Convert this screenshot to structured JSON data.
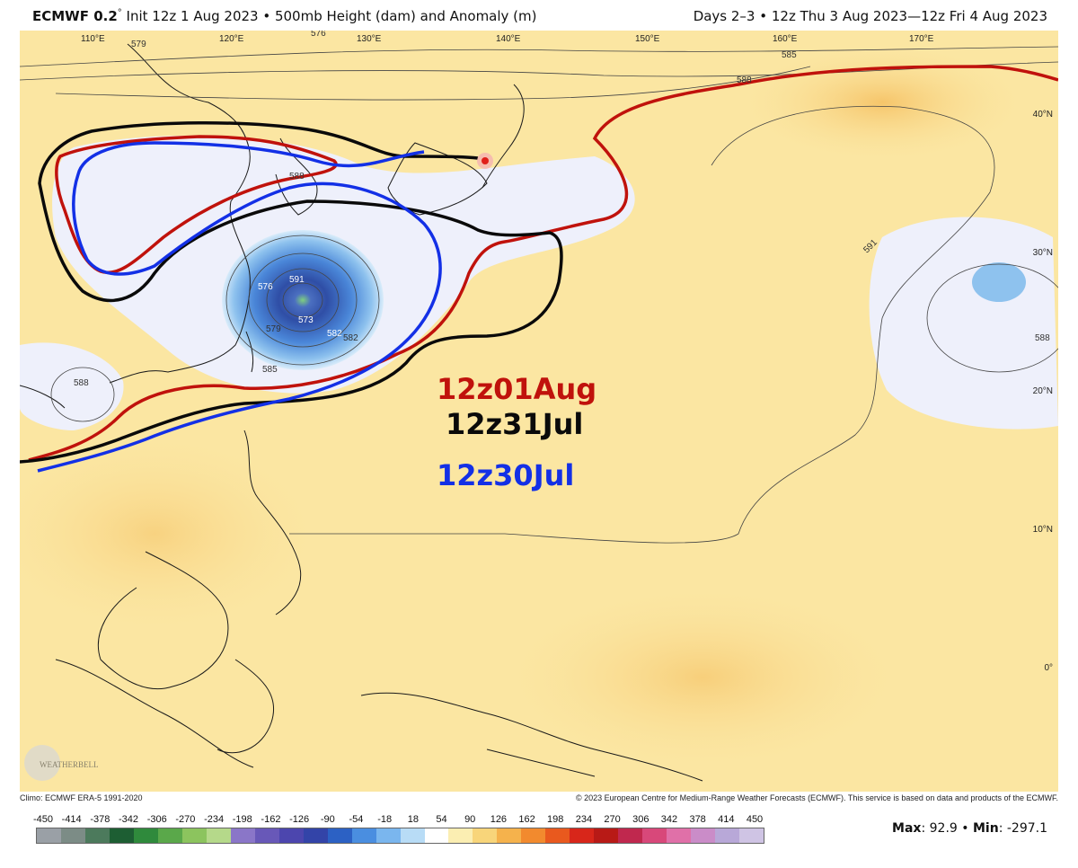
{
  "header": {
    "model": "ECMWF 0.2",
    "degree_mark": "°",
    "title_rest": " Init 12z 1 Aug 2023 • 500mb Height (dam) and Anomaly (m)",
    "valid": "Days 2–3 • 12z Thu 3 Aug 2023—12z Fri 4 Aug 2023"
  },
  "map": {
    "lon_labels": [
      "110°E",
      "120°E",
      "130°E",
      "140°E",
      "150°E",
      "160°E",
      "170°E"
    ],
    "lat_labels": [
      "40°N",
      "30°N",
      "20°N",
      "10°N",
      "0°"
    ],
    "contour_labels": [
      "576",
      "579",
      "585",
      "588",
      "591",
      "582",
      "573",
      "588",
      "576",
      "579",
      "582",
      "585",
      "588",
      "591",
      "588",
      "585",
      "582",
      "573",
      "585"
    ],
    "legend": {
      "aug01": "12z01Aug",
      "jul31": "12z31Jul",
      "jul30": "12z30Jul"
    },
    "colors": {
      "aug01": "#c0120c",
      "jul31": "#0a0a0a",
      "jul30": "#1330e6",
      "background": "#fbe8a6",
      "warm": "#f8cf78",
      "cool": "#eef0fb",
      "low_core": "#2f4ea6"
    },
    "watermark": "WEATHERBELL"
  },
  "footer": {
    "climo": "Climo: ECMWF ERA-5 1991-2020",
    "copyright": "© 2023 European Centre for Medium-Range Weather Forecasts (ECMWF). This service is based on data and products of the ECMWF."
  },
  "colorbar": {
    "ticks": [
      "-450",
      "-414",
      "-378",
      "-342",
      "-306",
      "-270",
      "-234",
      "-198",
      "-162",
      "-126",
      "-90",
      "-54",
      "-18",
      "18",
      "54",
      "90",
      "126",
      "162",
      "198",
      "234",
      "270",
      "306",
      "342",
      "378",
      "414",
      "450"
    ],
    "colors": [
      "#9aa0a6",
      "#7c8c86",
      "#4c7a5c",
      "#1d5e33",
      "#2f8a3c",
      "#5aa84a",
      "#8cc45e",
      "#b5d98a",
      "#8a76c8",
      "#6858b8",
      "#4c46ae",
      "#3344a8",
      "#2c61c4",
      "#4a8ee0",
      "#7ab6ee",
      "#b8dcf6",
      "#ffffff",
      "#fbeeb2",
      "#f8d57a",
      "#f5b24c",
      "#f28a2e",
      "#e9591e",
      "#d8261a",
      "#b81a16",
      "#c0284e",
      "#d8487a",
      "#e070a8",
      "#ca8cc8",
      "#b8a8d8",
      "#cfc4e4"
    ]
  },
  "stats": {
    "max_label": "Max",
    "max": "92.9",
    "sep": " • ",
    "min_label": "Min",
    "min": "-297.1"
  }
}
